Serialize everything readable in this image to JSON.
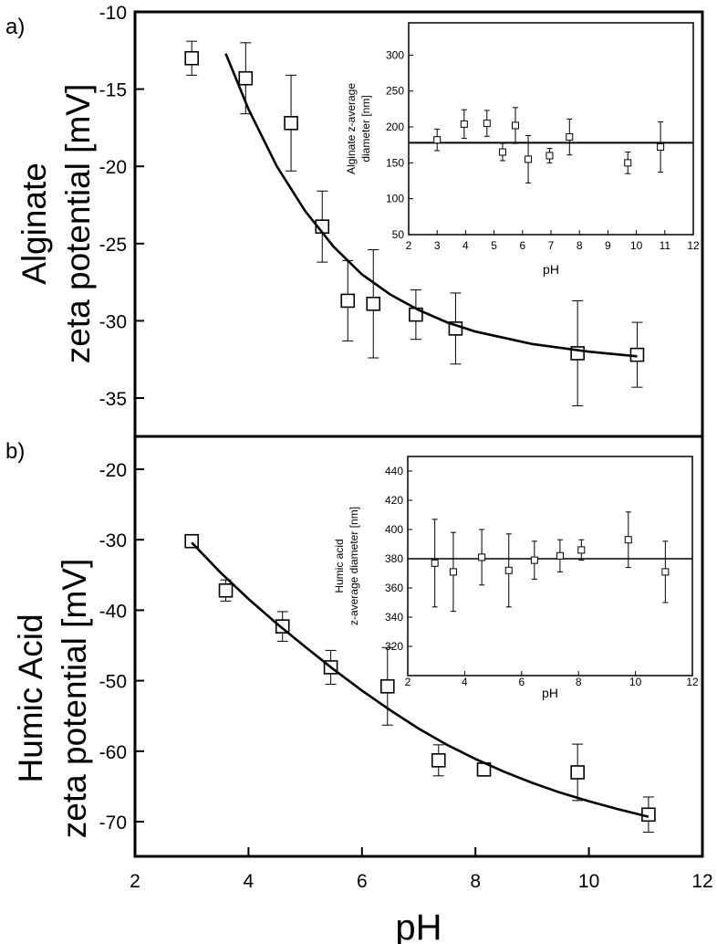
{
  "chart_data": [
    {
      "id": "a",
      "panel_label": "a)",
      "type": "scatter",
      "xlabel": "",
      "ylabel": [
        "Alginate",
        "zeta potential  [mV]"
      ],
      "xlim": [
        2,
        12
      ],
      "ylim": [
        -38,
        -10
      ],
      "yticks": [
        -10,
        -15,
        -20,
        -25,
        -30,
        -35
      ],
      "ytick_labels": [
        "-10",
        "-15",
        "-20",
        "-25",
        "-30",
        "-35"
      ],
      "points": [
        {
          "x": 3.0,
          "y": -13.0,
          "err": 1.1
        },
        {
          "x": 3.95,
          "y": -14.3,
          "err": 2.3
        },
        {
          "x": 4.75,
          "y": -17.2,
          "err": 3.1
        },
        {
          "x": 5.3,
          "y": -23.9,
          "err": 2.3
        },
        {
          "x": 5.75,
          "y": -28.7,
          "err": 2.6
        },
        {
          "x": 6.2,
          "y": -28.9,
          "err": 3.5
        },
        {
          "x": 6.95,
          "y": -29.6,
          "err": 1.6
        },
        {
          "x": 7.65,
          "y": -30.5,
          "err": 2.3
        },
        {
          "x": 9.8,
          "y": -32.1,
          "err": 3.4
        },
        {
          "x": 10.85,
          "y": -32.2,
          "err": 2.1
        }
      ],
      "fit": {
        "x": [
          3.6,
          4.0,
          4.5,
          5.0,
          5.5,
          6.0,
          6.5,
          7.0,
          7.5,
          8.0,
          9.0,
          10.0,
          10.85
        ],
        "y": [
          -12.7,
          -16.3,
          -20.0,
          -22.9,
          -25.2,
          -27.0,
          -28.3,
          -29.3,
          -30.1,
          -30.7,
          -31.5,
          -32.0,
          -32.3
        ]
      },
      "inset": {
        "xlabel": "pH",
        "ylabel": [
          "Alginate z-average",
          "diameter [nm]"
        ],
        "xlim": [
          2,
          12
        ],
        "xticks": [
          2,
          3,
          4,
          5,
          6,
          7,
          8,
          9,
          10,
          11,
          12
        ],
        "ylim": [
          50,
          345
        ],
        "yticks": [
          50,
          100,
          150,
          200,
          250,
          300
        ],
        "hline": 178,
        "points": [
          {
            "x": 3.0,
            "y": 182,
            "err": 15
          },
          {
            "x": 3.95,
            "y": 204,
            "err": 20
          },
          {
            "x": 4.75,
            "y": 205,
            "err": 18
          },
          {
            "x": 5.3,
            "y": 165,
            "err": 12
          },
          {
            "x": 5.75,
            "y": 202,
            "err": 25
          },
          {
            "x": 6.2,
            "y": 155,
            "err": 33
          },
          {
            "x": 6.95,
            "y": 160,
            "err": 10
          },
          {
            "x": 7.65,
            "y": 186,
            "err": 25
          },
          {
            "x": 9.7,
            "y": 150,
            "err": 15
          },
          {
            "x": 10.85,
            "y": 172,
            "err": 35
          }
        ]
      }
    },
    {
      "id": "b",
      "panel_label": "b)",
      "type": "scatter",
      "xlabel": "pH",
      "ylabel": [
        "Humic Acid",
        "zeta potential [mV]"
      ],
      "xlim": [
        2,
        12
      ],
      "xticks": [
        2,
        4,
        6,
        8,
        10,
        12
      ],
      "ylim": [
        -75,
        -15
      ],
      "yticks": [
        -20,
        -30,
        -40,
        -50,
        -60,
        -70
      ],
      "ytick_labels": [
        "-20",
        "-30",
        "-40",
        "-50",
        "-60",
        "-70"
      ],
      "points": [
        {
          "x": 3.0,
          "y": -30.2,
          "err": 0
        },
        {
          "x": 3.6,
          "y": -37.2,
          "err": 1.5
        },
        {
          "x": 4.6,
          "y": -42.3,
          "err": 2.1
        },
        {
          "x": 5.45,
          "y": -48.1,
          "err": 2.4
        },
        {
          "x": 6.45,
          "y": -50.8,
          "err": 5.5
        },
        {
          "x": 7.35,
          "y": -61.3,
          "err": 2.2
        },
        {
          "x": 8.15,
          "y": -62.6,
          "err": 0.9
        },
        {
          "x": 9.8,
          "y": -63.0,
          "err": 4.0
        },
        {
          "x": 11.05,
          "y": -69.0,
          "err": 2.5
        }
      ],
      "fit": {
        "x": [
          3.0,
          3.5,
          4.0,
          4.5,
          5.0,
          5.5,
          6.0,
          6.5,
          7.0,
          7.5,
          8.0,
          8.5,
          9.0,
          9.5,
          10.0,
          10.5,
          11.05
        ],
        "y": [
          -30.4,
          -34.6,
          -38.4,
          -41.9,
          -45.2,
          -48.4,
          -51.4,
          -54.2,
          -56.8,
          -59.1,
          -61.1,
          -62.9,
          -64.5,
          -65.9,
          -67.1,
          -68.2,
          -69.3
        ]
      },
      "inset": {
        "xlabel": "pH",
        "ylabel": [
          "Humic acid",
          "z-average diameter [nm]"
        ],
        "xlim": [
          2,
          12
        ],
        "xticks": [
          2,
          4,
          6,
          8,
          10,
          12
        ],
        "ylim": [
          300,
          450
        ],
        "yticks": [
          320,
          340,
          360,
          380,
          400,
          420,
          440
        ],
        "hline": 380,
        "points": [
          {
            "x": 2.95,
            "y": 377,
            "err": 30
          },
          {
            "x": 3.6,
            "y": 371,
            "err": 27
          },
          {
            "x": 4.6,
            "y": 381,
            "err": 19
          },
          {
            "x": 5.55,
            "y": 372,
            "err": 25
          },
          {
            "x": 6.45,
            "y": 379,
            "err": 13
          },
          {
            "x": 7.35,
            "y": 382,
            "err": 11
          },
          {
            "x": 8.1,
            "y": 386,
            "err": 7
          },
          {
            "x": 9.75,
            "y": 393,
            "err": 19
          },
          {
            "x": 11.05,
            "y": 371,
            "err": 21
          }
        ]
      }
    }
  ]
}
